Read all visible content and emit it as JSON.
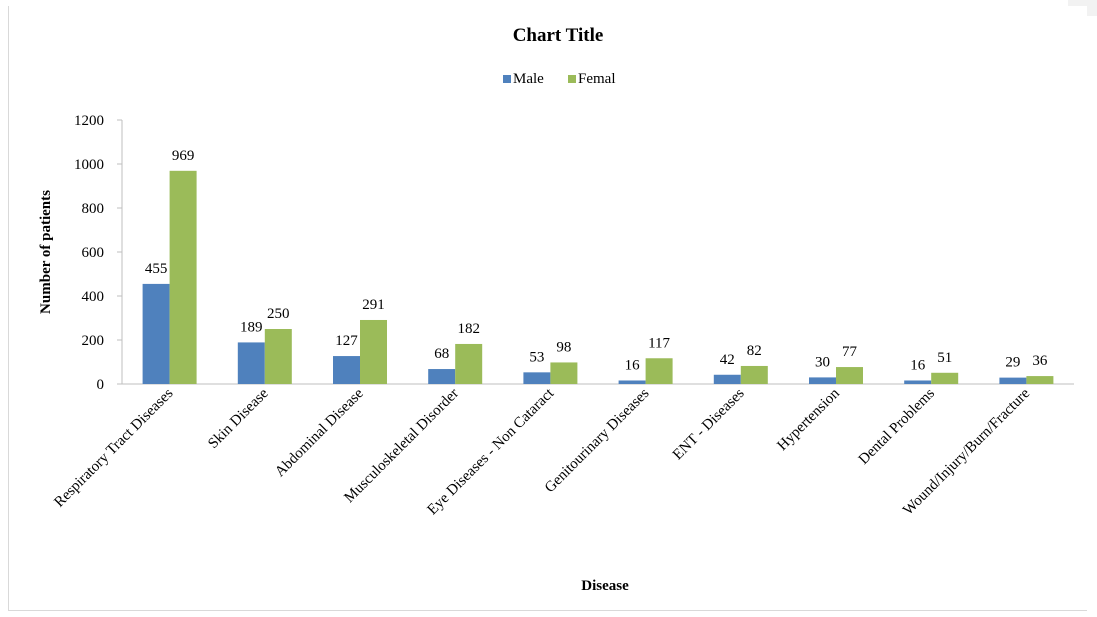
{
  "chart_data": {
    "type": "bar",
    "title": "Chart Title",
    "xlabel": "Disease",
    "ylabel": "Number of patients",
    "categories": [
      "Respiratory Tract Diseases",
      "Skin Disease",
      "Abdominal Disease",
      "Musculoskeletal Disorder",
      "Eye Diseases - Non Cataract",
      "Genitourinary  Diseases",
      "ENT - Diseases",
      "Hypertension",
      "Dental Problems",
      "Wound/Injury/Burn/Fracture"
    ],
    "series": [
      {
        "name": "Male",
        "color": "#4f81bd",
        "values": [
          455,
          189,
          127,
          68,
          53,
          16,
          42,
          30,
          16,
          29
        ]
      },
      {
        "name": "Femal",
        "color": "#9bbb59",
        "values": [
          969,
          250,
          291,
          182,
          98,
          117,
          82,
          77,
          51,
          36
        ]
      }
    ],
    "ylim": [
      0,
      1200
    ],
    "yticks": [
      0,
      200,
      400,
      600,
      800,
      1000,
      1200
    ],
    "grid": false,
    "legend": "top-center",
    "data_labels": true
  }
}
